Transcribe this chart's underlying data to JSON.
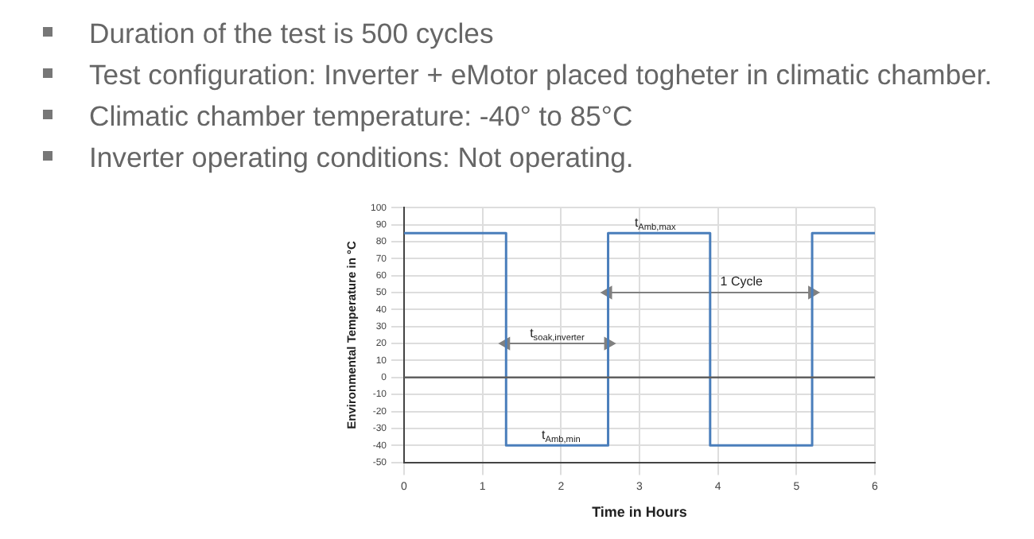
{
  "chart_data": {
    "type": "line",
    "xlabel": "Time in Hours",
    "ylabel": "Environmental Temperature in °C",
    "series": [
      {
        "color": "#4a7ebb",
        "x": [
          0,
          1.3,
          1.3,
          2.6,
          2.6,
          3.9,
          3.9,
          5.2,
          5.2,
          6
        ],
        "values": [
          85,
          85,
          -40,
          -40,
          85,
          85,
          -40,
          -40,
          85,
          85
        ]
      },
      {
        "color": "#808080",
        "marker": "triangle",
        "x": [
          1.3,
          2.6
        ],
        "values": [
          20,
          20
        ]
      },
      {
        "color": "#808080",
        "marker": "triangle",
        "x": [
          2.6,
          5.2
        ],
        "values": [
          50,
          50
        ]
      }
    ],
    "xlim": [
      0,
      6
    ],
    "xticks": [
      0,
      1,
      2,
      3,
      4,
      5,
      6
    ],
    "ylim": [
      -50,
      100
    ],
    "yticks": [
      -50,
      -40,
      -30,
      -20,
      -10,
      0,
      10,
      20,
      30,
      40,
      50,
      60,
      70,
      80,
      90,
      100
    ],
    "grid": true,
    "legend": false,
    "marker": "none",
    "line_style": "solid",
    "ref_lines": [
      {
        "axis": "y",
        "value": 0,
        "color": "#606060"
      }
    ],
    "annotations": [
      "Duration of the test is 500 cycles",
      "Test configuration: Inverter + eMotor placed togheter in climatic chamber.",
      "Climatic chamber temperature: -40° to 85°C",
      "Inverter operating conditions: Not operating.",
      {
        "text": "t$_{Amb,max}$",
        "x": 3.2,
        "y": 89
      },
      {
        "text": "1 Cycle",
        "x": 4.3,
        "y": 54
      },
      {
        "text": "t$_{soak,inverter}$",
        "x": 1.95,
        "y": 24
      },
      {
        "text": "t$_{Amb,min}$",
        "x": 2.0,
        "y": -36
      }
    ]
  }
}
